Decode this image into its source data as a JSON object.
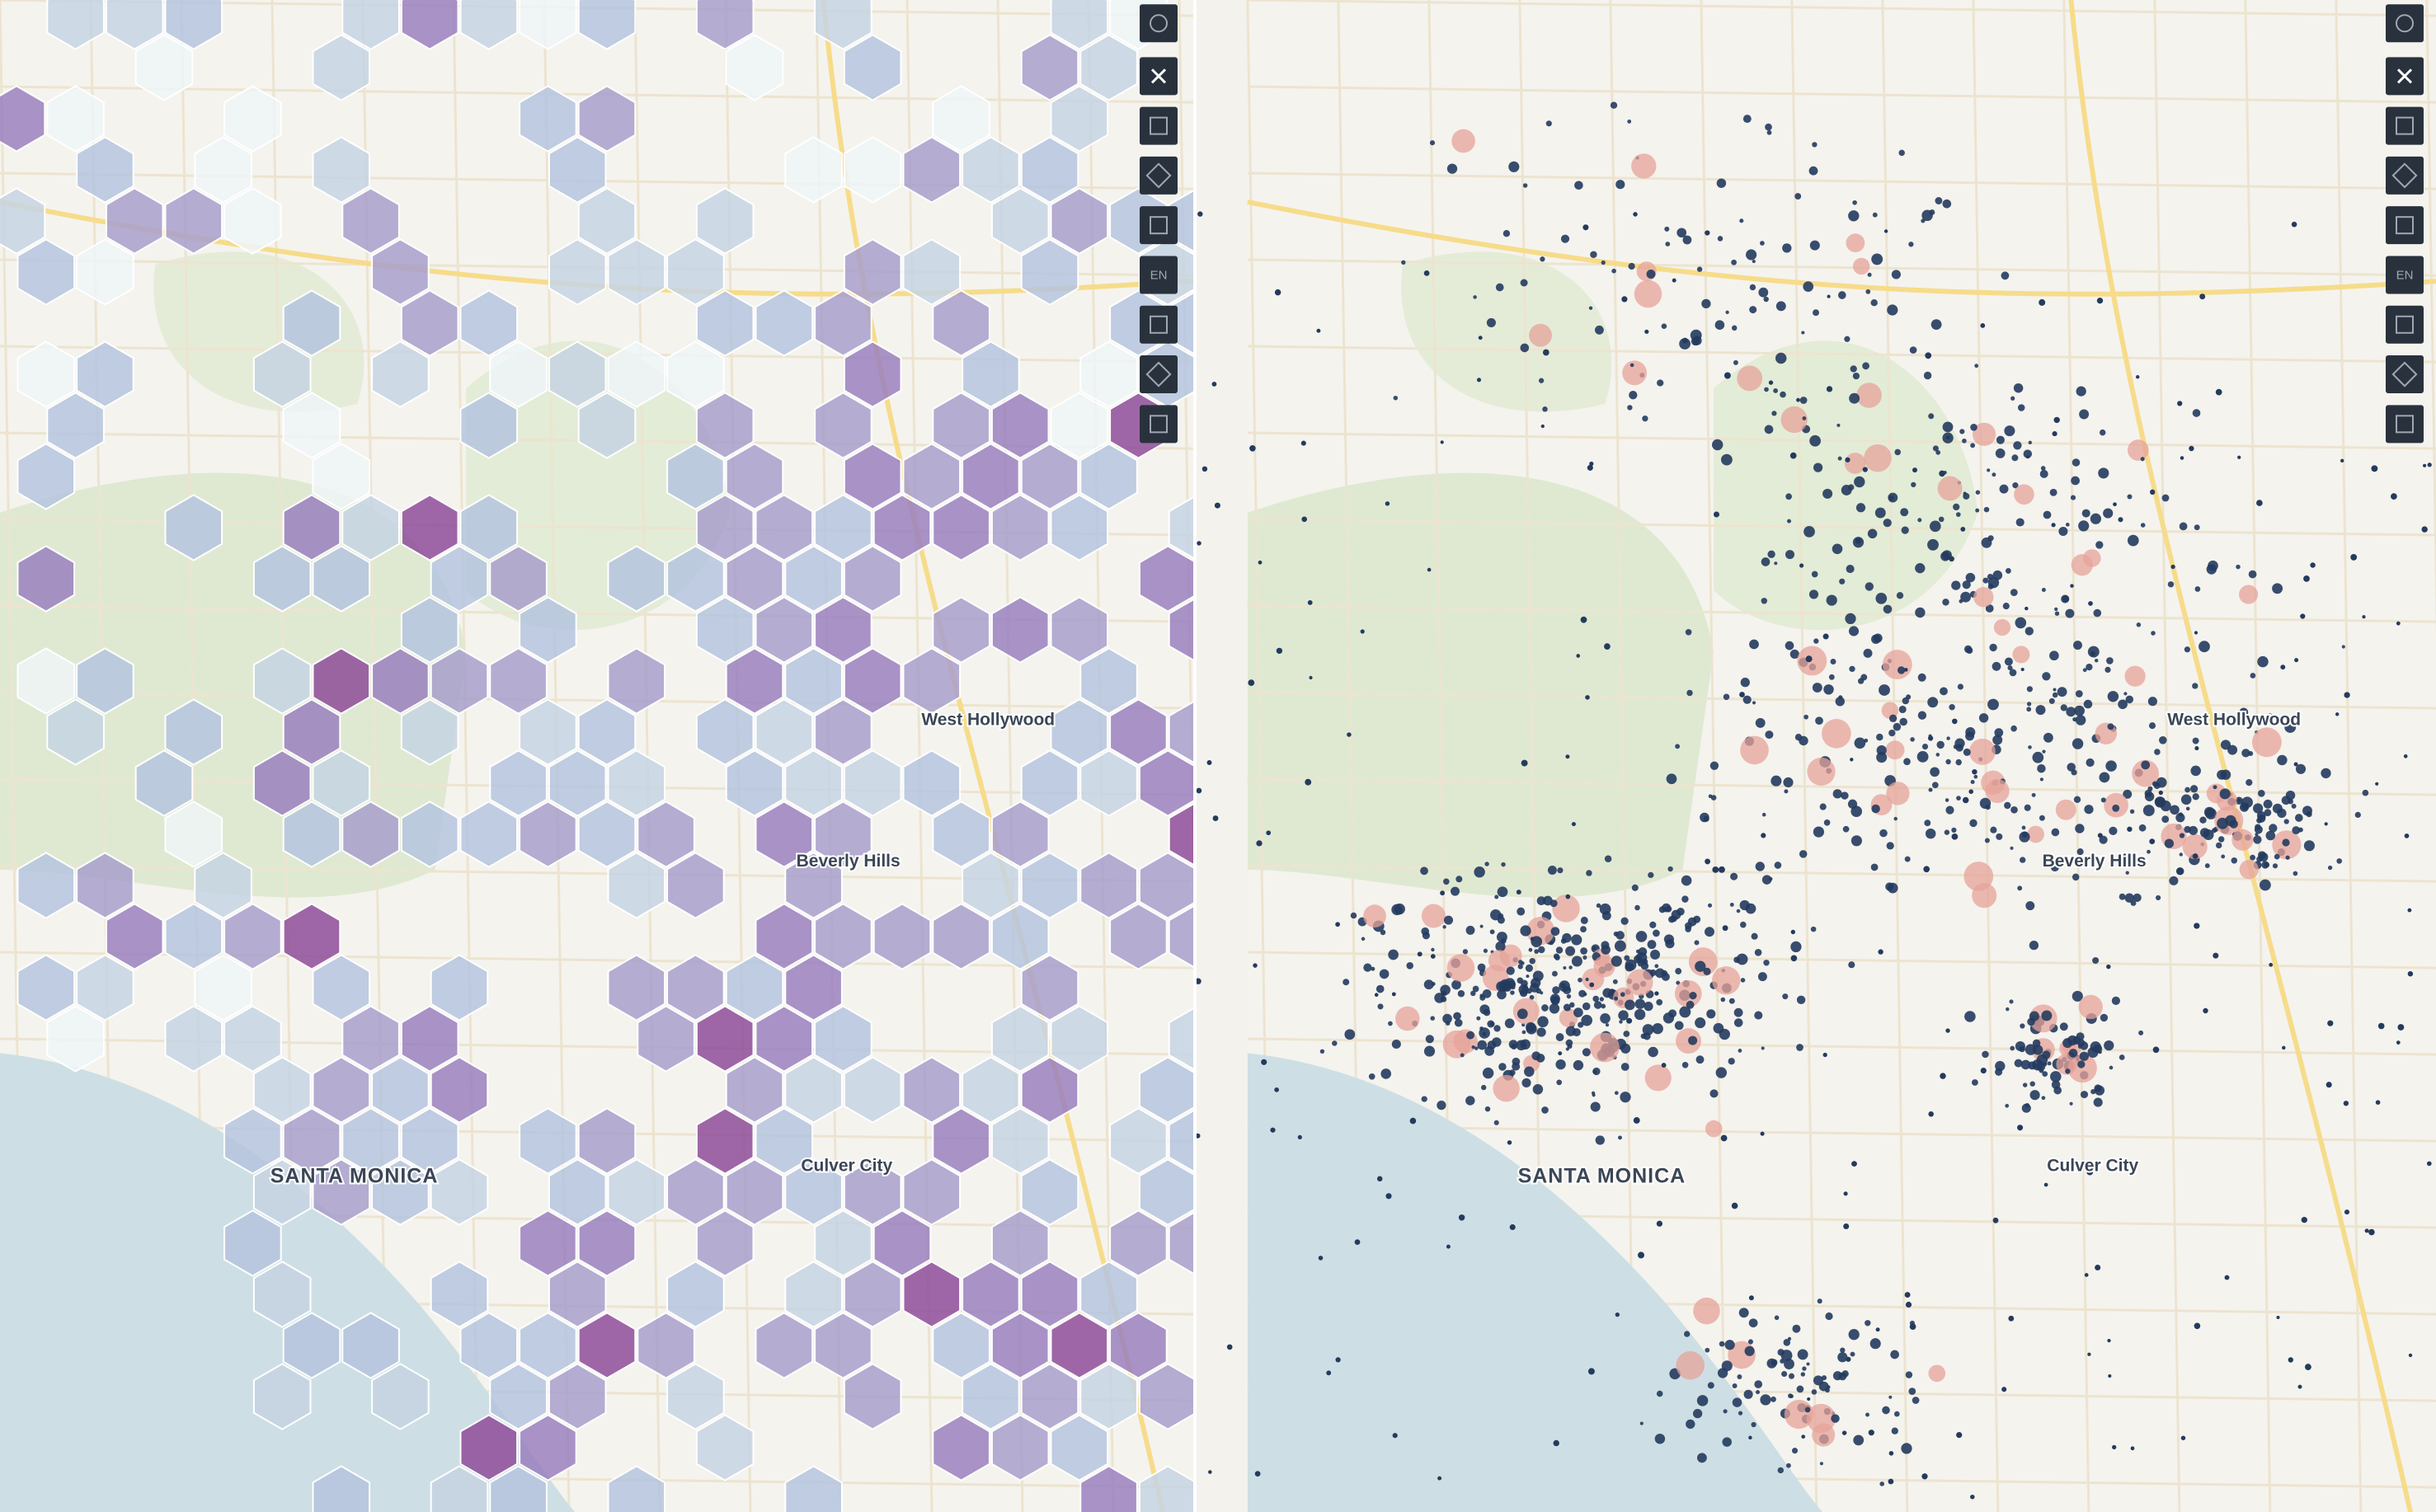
{
  "left_map": {
    "labels": [
      "West Hollywood",
      "Beverly Hills",
      "SANTA MONICA",
      "Culver City"
    ]
  },
  "right_map": {
    "labels": [
      "West Hollywood",
      "Beverly Hills",
      "SANTA MONICA",
      "Culver City"
    ]
  },
  "toolbar": {
    "language": "EN"
  }
}
